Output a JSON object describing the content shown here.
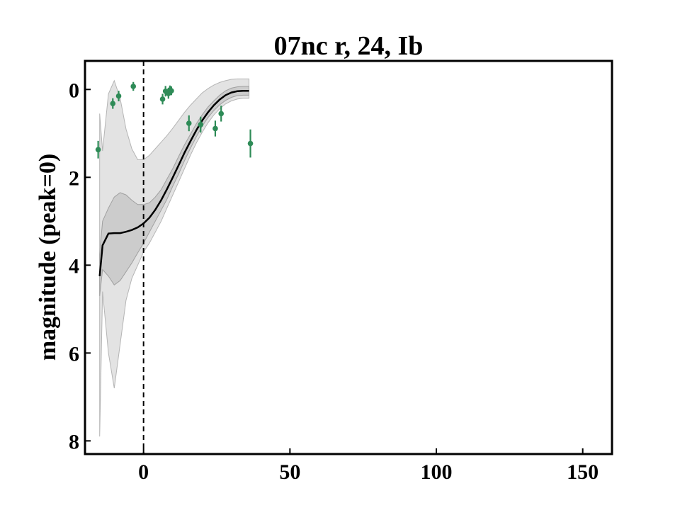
{
  "chart_data": {
    "type": "line",
    "title": "07nc r, 24, Ib",
    "xlabel": "",
    "ylabel": "magnitude (peak=0)",
    "xlim": [
      -20,
      160
    ],
    "ylim": [
      8.3,
      -0.65
    ],
    "y_inverted": true,
    "x_ticks": [
      0,
      50,
      100,
      150
    ],
    "y_ticks": [
      0,
      2,
      4,
      6,
      8
    ],
    "x_tick_labels": [
      "0",
      "50",
      "100",
      "150"
    ],
    "y_tick_labels": [
      "0",
      "2",
      "4",
      "6",
      "8"
    ],
    "reference_line": {
      "x": 0,
      "style": "dashed",
      "color": "#000000"
    },
    "grid": false,
    "legend": "none",
    "colors": {
      "points": "#2e8b57",
      "fit": "#000000",
      "band": "#c8c8c8"
    },
    "series": [
      {
        "kind": "points_with_errorbars",
        "x": [
          -15.5,
          -10.5,
          -8.5,
          -3.5,
          6.5,
          7.5,
          8.5,
          9.0,
          9.5,
          15.5,
          19.5,
          24.5,
          26.5,
          36.5
        ],
        "y": [
          1.37,
          0.32,
          0.15,
          -0.07,
          0.22,
          0.04,
          0.09,
          0.01,
          0.03,
          0.77,
          0.8,
          0.89,
          0.55,
          1.23
        ],
        "yerr": [
          0.2,
          0.12,
          0.12,
          0.1,
          0.12,
          0.12,
          0.12,
          0.1,
          0.1,
          0.18,
          0.18,
          0.18,
          0.18,
          0.32
        ]
      },
      {
        "kind": "fit",
        "x": [
          -15,
          -14,
          -12,
          -10,
          -8,
          -6,
          -4,
          -2,
          0,
          2,
          4,
          6,
          8,
          10,
          12,
          14,
          16,
          18,
          20,
          22,
          24,
          26,
          28,
          30,
          32,
          34,
          36
        ],
        "y": [
          4.25,
          3.55,
          3.28,
          3.27,
          3.27,
          3.24,
          3.2,
          3.14,
          3.05,
          2.92,
          2.74,
          2.52,
          2.27,
          2.0,
          1.72,
          1.44,
          1.18,
          0.93,
          0.71,
          0.52,
          0.36,
          0.23,
          0.13,
          0.07,
          0.04,
          0.03,
          0.03
        ],
        "band_1sigma_lower": [
          4.7,
          4.1,
          4.25,
          4.45,
          4.35,
          4.15,
          3.95,
          3.72,
          3.5,
          3.25,
          3.0,
          2.75,
          2.5,
          2.2,
          1.92,
          1.62,
          1.34,
          1.08,
          0.84,
          0.64,
          0.48,
          0.35,
          0.25,
          0.18,
          0.14,
          0.13,
          0.13
        ],
        "band_1sigma_upper": [
          3.75,
          3.0,
          2.7,
          2.45,
          2.35,
          2.4,
          2.52,
          2.62,
          2.62,
          2.58,
          2.45,
          2.28,
          2.04,
          1.8,
          1.52,
          1.26,
          1.02,
          0.78,
          0.58,
          0.4,
          0.26,
          0.13,
          0.03,
          -0.03,
          -0.06,
          -0.07,
          -0.07
        ],
        "band_2sigma_lower": [
          7.9,
          4.6,
          6.0,
          6.8,
          5.8,
          4.8,
          4.3,
          4.0,
          3.7,
          3.5,
          3.25,
          3.0,
          2.7,
          2.4,
          2.1,
          1.8,
          1.5,
          1.22,
          0.98,
          0.76,
          0.58,
          0.44,
          0.33,
          0.26,
          0.22,
          0.2,
          0.2
        ],
        "band_2sigma_upper": [
          0.55,
          1.4,
          0.1,
          -0.2,
          0.2,
          0.9,
          1.35,
          1.6,
          1.6,
          1.5,
          1.35,
          1.2,
          1.05,
          0.88,
          0.7,
          0.52,
          0.36,
          0.22,
          0.08,
          -0.02,
          -0.1,
          -0.16,
          -0.2,
          -0.23,
          -0.24,
          -0.24,
          -0.24
        ]
      }
    ]
  }
}
